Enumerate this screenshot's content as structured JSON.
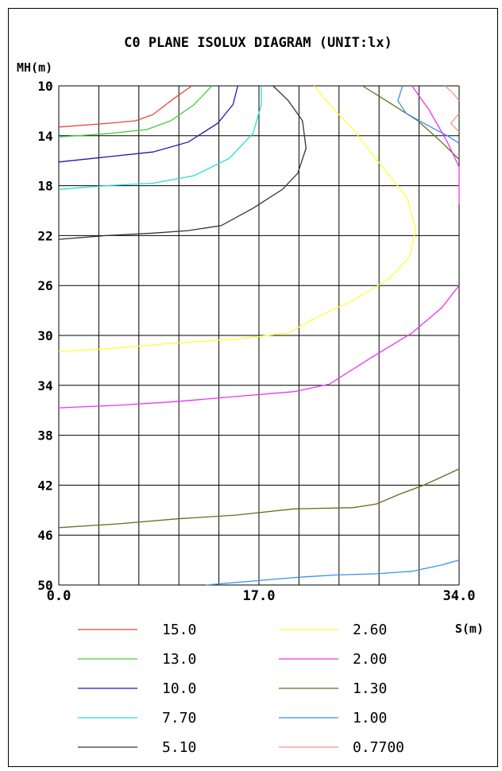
{
  "chart_data": {
    "type": "line",
    "title": "C0 PLANE ISOLUX DIAGRAM (UNIT:lx)",
    "xlabel": "S(m)",
    "ylabel": "MH(m)",
    "xlim": [
      0,
      34
    ],
    "ylim": [
      10,
      50
    ],
    "y_inverted": true,
    "grid": true,
    "x_ticks": [
      {
        "value": 0,
        "label": "0.0"
      },
      {
        "value": 17,
        "label": "17.0"
      },
      {
        "value": 34,
        "label": "34.0"
      }
    ],
    "y_ticks": [
      {
        "value": 10,
        "label": "10"
      },
      {
        "value": 14,
        "label": "14"
      },
      {
        "value": 18,
        "label": "18"
      },
      {
        "value": 22,
        "label": "22"
      },
      {
        "value": 26,
        "label": "26"
      },
      {
        "value": 30,
        "label": "30"
      },
      {
        "value": 34,
        "label": "34"
      },
      {
        "value": 38,
        "label": "38"
      },
      {
        "value": 42,
        "label": "42"
      },
      {
        "value": 46,
        "label": "46"
      },
      {
        "value": 50,
        "label": "50"
      }
    ],
    "series": [
      {
        "name": "15.0",
        "color": "#e8453c",
        "points": [
          [
            0,
            13.3
          ],
          [
            4.2,
            13.0
          ],
          [
            6.5,
            12.8
          ],
          [
            8.0,
            12.3
          ],
          [
            9.8,
            11.0
          ],
          [
            11.3,
            10.0
          ]
        ]
      },
      {
        "name": "13.0",
        "color": "#44cc44",
        "points": [
          [
            0,
            14.1
          ],
          [
            4.5,
            13.8
          ],
          [
            7.5,
            13.5
          ],
          [
            9.5,
            12.8
          ],
          [
            11.5,
            11.5
          ],
          [
            13.0,
            10.0
          ]
        ]
      },
      {
        "name": "10.0",
        "color": "#1a1ab3",
        "points": [
          [
            0,
            16.1
          ],
          [
            4.0,
            15.7
          ],
          [
            8.0,
            15.3
          ],
          [
            11.0,
            14.5
          ],
          [
            13.5,
            13.0
          ],
          [
            14.8,
            11.5
          ],
          [
            15.2,
            10.0
          ]
        ]
      },
      {
        "name": "7.70",
        "color": "#22dddd",
        "points": [
          [
            0,
            18.3
          ],
          [
            4.0,
            18.0
          ],
          [
            8.0,
            17.8
          ],
          [
            11.5,
            17.2
          ],
          [
            14.5,
            15.8
          ],
          [
            16.5,
            13.8
          ],
          [
            17.2,
            11.5
          ],
          [
            17.2,
            10.0
          ]
        ]
      },
      {
        "name": "5.10",
        "color": "#333333",
        "points": [
          [
            0,
            22.3
          ],
          [
            4.0,
            22.0
          ],
          [
            8.0,
            21.8
          ],
          [
            11.0,
            21.6
          ],
          [
            13.8,
            21.2
          ],
          [
            16.5,
            19.8
          ],
          [
            19.0,
            18.3
          ],
          [
            20.3,
            17.0
          ],
          [
            21.0,
            15.0
          ],
          [
            20.7,
            12.8
          ],
          [
            19.5,
            11.2
          ],
          [
            18.2,
            10.0
          ]
        ]
      },
      {
        "name": "2.60",
        "color": "#ffff33",
        "points": [
          [
            0,
            31.3
          ],
          [
            5.0,
            31.0
          ],
          [
            10.0,
            30.6
          ],
          [
            15.0,
            30.3
          ],
          [
            19.5,
            29.8
          ],
          [
            22.0,
            28.5
          ],
          [
            25.0,
            27.2
          ],
          [
            28.0,
            25.5
          ],
          [
            29.8,
            23.7
          ],
          [
            30.3,
            21.5
          ],
          [
            29.6,
            19.0
          ],
          [
            27.5,
            16.5
          ],
          [
            25.0,
            13.5
          ],
          [
            23.0,
            11.5
          ],
          [
            21.7,
            10.0
          ]
        ]
      },
      {
        "name": "2.00",
        "color": "#ee33ee",
        "points": [
          [
            0,
            35.8
          ],
          [
            5.0,
            35.6
          ],
          [
            10.0,
            35.3
          ],
          [
            15.0,
            34.9
          ],
          [
            20.0,
            34.5
          ],
          [
            23.0,
            33.9
          ],
          [
            26.5,
            31.8
          ],
          [
            30.0,
            29.8
          ],
          [
            32.5,
            27.8
          ],
          [
            34.0,
            26.0
          ]
        ]
      },
      {
        "name": "1.30",
        "color": "#6b6b1f",
        "points": [
          [
            0,
            45.4
          ],
          [
            5.0,
            45.1
          ],
          [
            10.0,
            44.7
          ],
          [
            15.0,
            44.4
          ],
          [
            20.0,
            43.9
          ],
          [
            25.0,
            43.8
          ],
          [
            27.0,
            43.5
          ],
          [
            29.0,
            42.7
          ],
          [
            31.0,
            42.0
          ],
          [
            34.0,
            40.7
          ]
        ]
      },
      {
        "name": "1.00",
        "color": "#3b8ef0",
        "points": [
          [
            12.5,
            50.0
          ],
          [
            15.0,
            49.8
          ],
          [
            20.0,
            49.4
          ],
          [
            23.5,
            49.2
          ],
          [
            27.0,
            49.1
          ],
          [
            30.0,
            48.9
          ],
          [
            32.5,
            48.4
          ],
          [
            34.0,
            48.0
          ]
        ]
      },
      {
        "name": "0.7700",
        "color": "#f09a80",
        "points": []
      }
    ],
    "extra_segments": [
      {
        "series": "1.30",
        "points": [
          [
            25.8,
            10.0
          ],
          [
            28.0,
            11.3
          ],
          [
            30.5,
            12.8
          ],
          [
            32.5,
            14.5
          ],
          [
            34.0,
            15.9
          ]
        ]
      },
      {
        "series": "2.00",
        "points": [
          [
            30.0,
            10.0
          ],
          [
            31.5,
            12.0
          ],
          [
            33.0,
            14.5
          ],
          [
            34.0,
            16.5
          ],
          [
            34.0,
            19.5
          ]
        ]
      },
      {
        "series": "1.00",
        "points": [
          [
            29.2,
            10.0
          ],
          [
            28.8,
            11.2
          ],
          [
            29.5,
            12.2
          ],
          [
            31.0,
            13.0
          ],
          [
            33.0,
            14.0
          ],
          [
            34.0,
            14.6
          ]
        ]
      },
      {
        "series": "0.7700",
        "points": [
          [
            32.8,
            10.0
          ],
          [
            33.5,
            10.6
          ],
          [
            34.0,
            11.2
          ]
        ]
      },
      {
        "series": "0.7700",
        "points": [
          [
            34.0,
            12.2
          ],
          [
            33.3,
            13.0
          ],
          [
            34.0,
            13.7
          ]
        ]
      }
    ],
    "legend_placement": "bottom"
  }
}
